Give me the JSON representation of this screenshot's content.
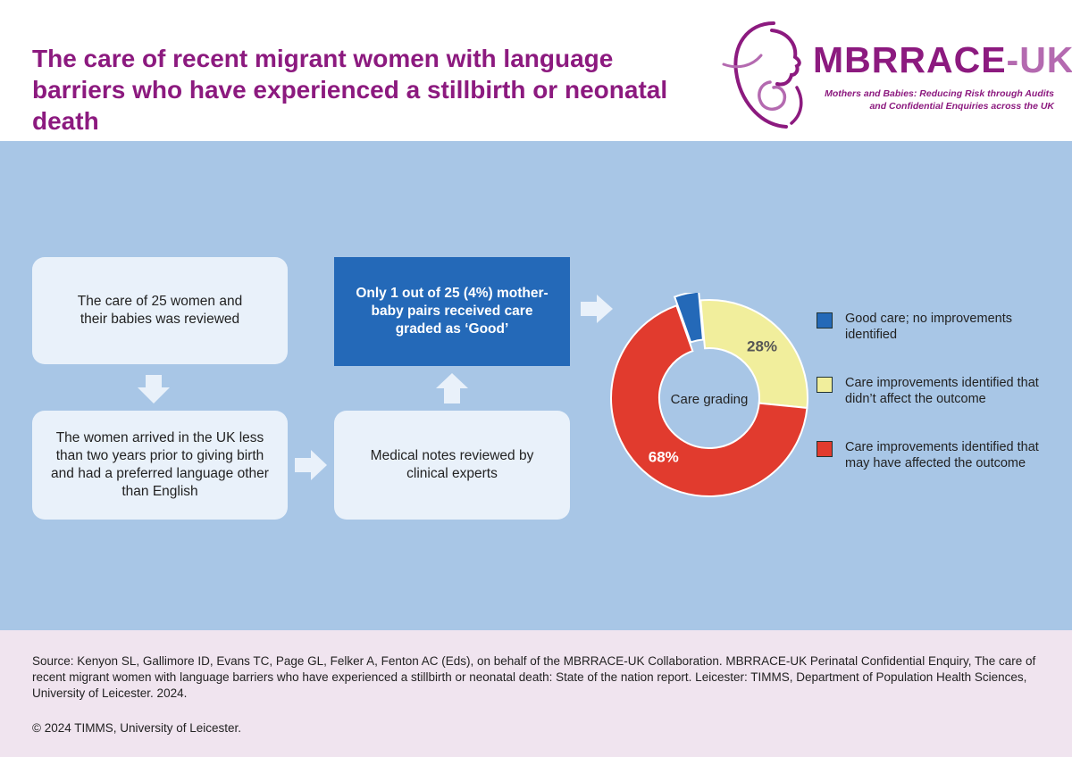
{
  "header": {
    "title": "The care of recent migrant women with language barriers who have experienced a stillbirth or neonatal death"
  },
  "logo": {
    "name_main": "MBRRACE",
    "name_suffix": "-UK",
    "subtitle": "Mothers and Babies: Reducing Risk through Audits and Confidential Enquiries across the UK",
    "colors": {
      "primary": "#8c1a7f",
      "secondary": "#b46ab0"
    }
  },
  "flow": {
    "box1": "The care of 25 women and their babies was reviewed",
    "box2": "The women arrived in the UK less than two years prior to giving birth and had a preferred language other than English",
    "box3": "Medical notes reviewed by clinical experts",
    "box4": "Only 1 out of 25 (4%) mother-baby pairs received care graded as ‘Good’"
  },
  "chart_data": {
    "type": "pie",
    "title": "Care grading",
    "categories": [
      "Good care; no improvements identified",
      "Care improvements identified that didn’t affect the outcome",
      "Care improvements identified that may have affected the outcome"
    ],
    "values": [
      4,
      28,
      68
    ],
    "data_labels": [
      "",
      "28%",
      "68%"
    ],
    "colors": [
      "#2469b8",
      "#f1ee9c",
      "#e13b2e"
    ],
    "exploded": [
      true,
      false,
      false
    ],
    "donut": true,
    "legend_position": "right"
  },
  "footer": {
    "source": "Source: Kenyon SL, Gallimore ID, Evans TC, Page GL, Felker A, Fenton AC (Eds), on behalf of the MBRRACE-UK Collaboration. MBRRACE-UK Perinatal Confidential Enquiry, The care of recent migrant women with language barriers who have experienced a stillbirth or neonatal death: State of the nation report. Leicester: TIMMS, Department of Population Health Sciences, University of Leicester. 2024.",
    "copyright": "© 2024 TIMMS, University of Leicester."
  },
  "colors": {
    "title": "#8c1a7f",
    "panel_bg": "#a8c6e6",
    "box_bg": "#e9f1fa",
    "highlight_box": "#2469b8",
    "footer_bg": "#f0e4ef"
  }
}
